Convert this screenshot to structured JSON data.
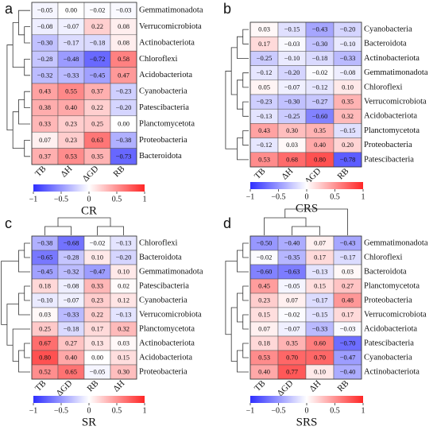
{
  "chart_data": [
    {
      "type": "heatmap",
      "panel": "a",
      "title": "CR",
      "x": [
        "TB",
        "ΔH",
        "ΔGD",
        "RB"
      ],
      "y": [
        "Gemmatimonadota",
        "Verrucomicrobiota",
        "Actinobacteriota",
        "Chloroflexi",
        "Acidobacteriota",
        "Cyanobacteria",
        "Patescibacteria",
        "Planctomycetota",
        "Proteobacteria",
        "Bacteroidota"
      ],
      "values": [
        [
          -0.05,
          0.0,
          -0.02,
          -0.03
        ],
        [
          -0.08,
          -0.07,
          0.22,
          0.08
        ],
        [
          -0.3,
          -0.17,
          -0.18,
          0.08
        ],
        [
          -0.28,
          -0.48,
          -0.72,
          0.58
        ],
        [
          -0.32,
          -0.33,
          -0.45,
          0.47
        ],
        [
          0.43,
          0.55,
          0.37,
          -0.23
        ],
        [
          0.38,
          0.4,
          0.22,
          -0.2
        ],
        [
          0.33,
          0.23,
          0.25,
          0.0
        ],
        [
          0.07,
          0.23,
          0.63,
          -0.38
        ],
        [
          0.37,
          0.53,
          0.35,
          -0.73
        ]
      ],
      "value_labels": [
        [
          "−0.05",
          "0.00",
          "−0.02",
          "−0.03"
        ],
        [
          "−0.08",
          "−0.07",
          "0.22",
          "0.08"
        ],
        [
          "−0.30",
          "−0.17",
          "−0.18",
          "0.08"
        ],
        [
          "−0.28",
          "−0.48",
          "−0.72",
          "0.58"
        ],
        [
          "−0.32",
          "−0.33",
          "−0.45",
          "0.47"
        ],
        [
          "0.43",
          "0.55",
          "0.37",
          "−0.23"
        ],
        [
          "0.38",
          "0.40",
          "0.22",
          "−0.20"
        ],
        [
          "0.33",
          "0.23",
          "0.25",
          "0.00"
        ],
        [
          "0.07",
          "0.23",
          "0.63",
          "−0.38"
        ],
        [
          "0.37",
          "0.53",
          "0.35",
          "−0.73"
        ]
      ],
      "zlim": [
        -1,
        1
      ],
      "zticks": [
        {
          "value": -1,
          "label": "−1"
        },
        {
          "value": -0.5,
          "label": "−0.5"
        },
        0,
        0.5,
        1
      ],
      "colors": [
        "#2f2fff",
        "#ffffff",
        "#ff2626"
      ]
    },
    {
      "type": "heatmap",
      "panel": "b",
      "title": "CRS",
      "x": [
        "TB",
        "ΔH",
        "ΔGD",
        "RB"
      ],
      "y": [
        "Cyanobacteria",
        "Bacteroidota",
        "Actinobacteriota",
        "Gemmatimonadota",
        "Chloroflexi",
        "Verrucomicrobiota",
        "Acidobacteriota",
        "Planctomycetota",
        "Proteobacteria",
        "Patescibacteria"
      ],
      "values": [
        [
          0.03,
          -0.15,
          -0.43,
          -0.2
        ],
        [
          0.17,
          -0.03,
          -0.3,
          -0.1
        ],
        [
          -0.25,
          -0.1,
          -0.18,
          -0.33
        ],
        [
          -0.12,
          -0.2,
          -0.02,
          -0.08
        ],
        [
          0.05,
          -0.07,
          -0.12,
          0.1
        ],
        [
          -0.23,
          -0.3,
          -0.27,
          0.35
        ],
        [
          -0.13,
          -0.25,
          -0.6,
          0.32
        ],
        [
          0.43,
          0.3,
          0.35,
          -0.15
        ],
        [
          -0.12,
          0.03,
          0.4,
          0.2
        ],
        [
          0.53,
          0.68,
          0.8,
          -0.78
        ]
      ],
      "value_labels": [
        [
          "0.03",
          "−0.15",
          "−0.43",
          "−0.20"
        ],
        [
          "0.17",
          "−0.03",
          "−0.30",
          "−0.10"
        ],
        [
          "−0.25",
          "−0.10",
          "−0.18",
          "−0.33"
        ],
        [
          "−0.12",
          "−0.20",
          "−0.02",
          "−0.08"
        ],
        [
          "0.05",
          "−0.07",
          "−0.12",
          "0.10"
        ],
        [
          "−0.23",
          "−0.30",
          "−0.27",
          "0.35"
        ],
        [
          "−0.13",
          "−0.25",
          "−0.60",
          "0.32"
        ],
        [
          "0.43",
          "0.30",
          "0.35",
          "−0.15"
        ],
        [
          "−0.12",
          "0.03",
          "0.40",
          "0.20"
        ],
        [
          "0.53",
          "0.68",
          "0.80",
          "−0.78"
        ]
      ],
      "zlim": [
        -1,
        1
      ],
      "zticks": [
        {
          "value": -1,
          "label": "−1"
        },
        {
          "value": -0.5,
          "label": "−0.5"
        },
        0,
        0.5,
        1
      ],
      "colors": [
        "#2f2fff",
        "#ffffff",
        "#ff2626"
      ]
    },
    {
      "type": "heatmap",
      "panel": "c",
      "title": "SR",
      "x": [
        "TB",
        "ΔGD",
        "RB",
        "ΔH"
      ],
      "y": [
        "Chloroflexi",
        "Bacteroidota",
        "Gemmatimonadota",
        "Patescibacteria",
        "Cyanobacteria",
        "Verrucomicrobiota",
        "Planctomycetota",
        "Actinobacteriota",
        "Acidobacteriota",
        "Proteobacteria"
      ],
      "values": [
        [
          -0.38,
          -0.68,
          -0.02,
          -0.13
        ],
        [
          -0.65,
          -0.28,
          0.1,
          -0.2
        ],
        [
          -0.45,
          -0.32,
          -0.47,
          0.1
        ],
        [
          0.18,
          -0.08,
          0.33,
          0.02
        ],
        [
          -0.1,
          -0.07,
          0.23,
          0.12
        ],
        [
          0.03,
          -0.33,
          0.22,
          -0.13
        ],
        [
          0.25,
          -0.18,
          0.17,
          0.32
        ],
        [
          0.67,
          0.27,
          0.13,
          0.03
        ],
        [
          0.8,
          0.4,
          0.0,
          0.15
        ],
        [
          0.52,
          0.65,
          -0.05,
          0.3
        ]
      ],
      "value_labels": [
        [
          "−0.38",
          "−0.68",
          "−0.02",
          "−0.13"
        ],
        [
          "−0.65",
          "−0.28",
          "0.10",
          "−0.20"
        ],
        [
          "−0.45",
          "−0.32",
          "−0.47",
          "0.10"
        ],
        [
          "0.18",
          "−0.08",
          "0.33",
          "0.02"
        ],
        [
          "−0.10",
          "−0.07",
          "0.23",
          "0.12"
        ],
        [
          "0.03",
          "−0.33",
          "0.22",
          "−0.13"
        ],
        [
          "0.25",
          "−0.18",
          "0.17",
          "0.32"
        ],
        [
          "0.67",
          "0.27",
          "0.13",
          "0.03"
        ],
        [
          "0.80",
          "0.40",
          "0.00",
          "0.15"
        ],
        [
          "0.52",
          "0.65",
          "−0.05",
          "0.30"
        ]
      ],
      "zlim": [
        -1,
        1
      ],
      "zticks": [
        {
          "value": -1,
          "label": "−1"
        },
        {
          "value": -0.5,
          "label": "−0.5"
        },
        0,
        0.5,
        1
      ],
      "colors": [
        "#2f2fff",
        "#ffffff",
        "#ff2626"
      ]
    },
    {
      "type": "heatmap",
      "panel": "d",
      "title": "SRS",
      "x": [
        "TB",
        "ΔGD",
        "ΔH",
        "RB"
      ],
      "y": [
        "Gemmatimonadota",
        "Chloroflexi",
        "Bacteroidota",
        "Planctomycetota",
        "Proteobacteria",
        "Verrucomicrobiota",
        "Acidobacteriota",
        "Patescibacteria",
        "Cyanobacteria",
        "Actinobacteriota"
      ],
      "values": [
        [
          -0.5,
          -0.4,
          0.07,
          -0.43
        ],
        [
          -0.02,
          -0.35,
          0.17,
          -0.17
        ],
        [
          -0.6,
          -0.63,
          -0.13,
          0.03
        ],
        [
          0.45,
          -0.05,
          0.15,
          0.27
        ],
        [
          0.23,
          0.07,
          -0.17,
          0.48
        ],
        [
          0.15,
          -0.02,
          -0.15,
          0.17
        ],
        [
          0.07,
          -0.07,
          -0.33,
          -0.03
        ],
        [
          0.18,
          0.35,
          0.6,
          -0.7
        ],
        [
          0.53,
          0.7,
          0.7,
          -0.47
        ],
        [
          0.4,
          0.77,
          0.1,
          -0.4
        ]
      ],
      "value_labels": [
        [
          "−0.50",
          "−0.40",
          "0.07",
          "−0.43"
        ],
        [
          "−0.02",
          "−0.35",
          "0.17",
          "−0.17"
        ],
        [
          "−0.60",
          "−0.63",
          "−0.13",
          "0.03"
        ],
        [
          "0.45",
          "−0.05",
          "0.15",
          "0.27"
        ],
        [
          "0.23",
          "0.07",
          "−0.17",
          "0.48"
        ],
        [
          "0.15",
          "−0.02",
          "−0.15",
          "0.17"
        ],
        [
          "0.07",
          "−0.07",
          "−0.33",
          "−0.03"
        ],
        [
          "0.18",
          "0.35",
          "0.60",
          "−0.70"
        ],
        [
          "0.53",
          "0.70",
          "0.70",
          "−0.47"
        ],
        [
          "0.40",
          "0.77",
          "0.10",
          "−0.40"
        ]
      ],
      "zlim": [
        -1,
        1
      ],
      "zticks": [
        {
          "value": -1,
          "label": "−1"
        },
        {
          "value": -0.5,
          "label": "−0.5"
        },
        0,
        0.5,
        1
      ],
      "colors": [
        "#2f2fff",
        "#ffffff",
        "#ff2626"
      ]
    }
  ]
}
